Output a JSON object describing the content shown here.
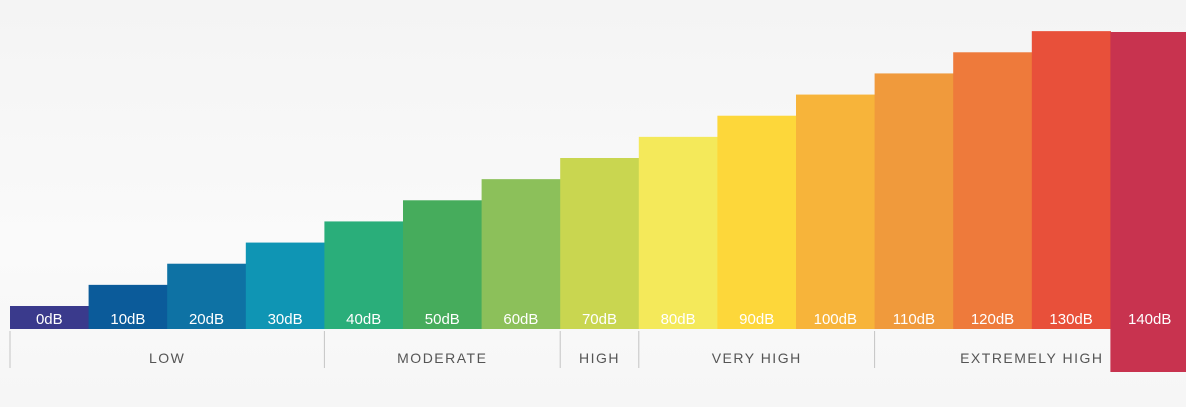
{
  "chart_data": {
    "type": "bar",
    "title": "",
    "xlabel": "",
    "ylabel": "",
    "categories": [
      "0dB",
      "10dB",
      "20dB",
      "30dB",
      "40dB",
      "50dB",
      "60dB",
      "70dB",
      "80dB",
      "90dB",
      "100dB",
      "110dB",
      "120dB",
      "130dB",
      "140dB"
    ],
    "values": [
      0,
      10,
      20,
      30,
      40,
      50,
      60,
      70,
      80,
      90,
      100,
      110,
      120,
      130,
      140
    ],
    "colors": [
      "#3a3a8c",
      "#0b5b9a",
      "#0e72a4",
      "#0f95b4",
      "#2aae7a",
      "#46ac5c",
      "#8cc05a",
      "#c9d650",
      "#f4e95a",
      "#fdd73a",
      "#f7b43a",
      "#f09a3c",
      "#ee7a3b",
      "#e8503a",
      "#c8334f"
    ],
    "groups": [
      {
        "label": "LOW",
        "from": 0,
        "to": 3
      },
      {
        "label": "MODERATE",
        "from": 4,
        "to": 6
      },
      {
        "label": "HIGH",
        "from": 7,
        "to": 7
      },
      {
        "label": "VERY HIGH",
        "from": 8,
        "to": 10
      },
      {
        "label": "EXTREMELY HIGH",
        "from": 11,
        "to": 14
      }
    ],
    "ylim": [
      0,
      140
    ],
    "grid": false,
    "legend": "none"
  }
}
